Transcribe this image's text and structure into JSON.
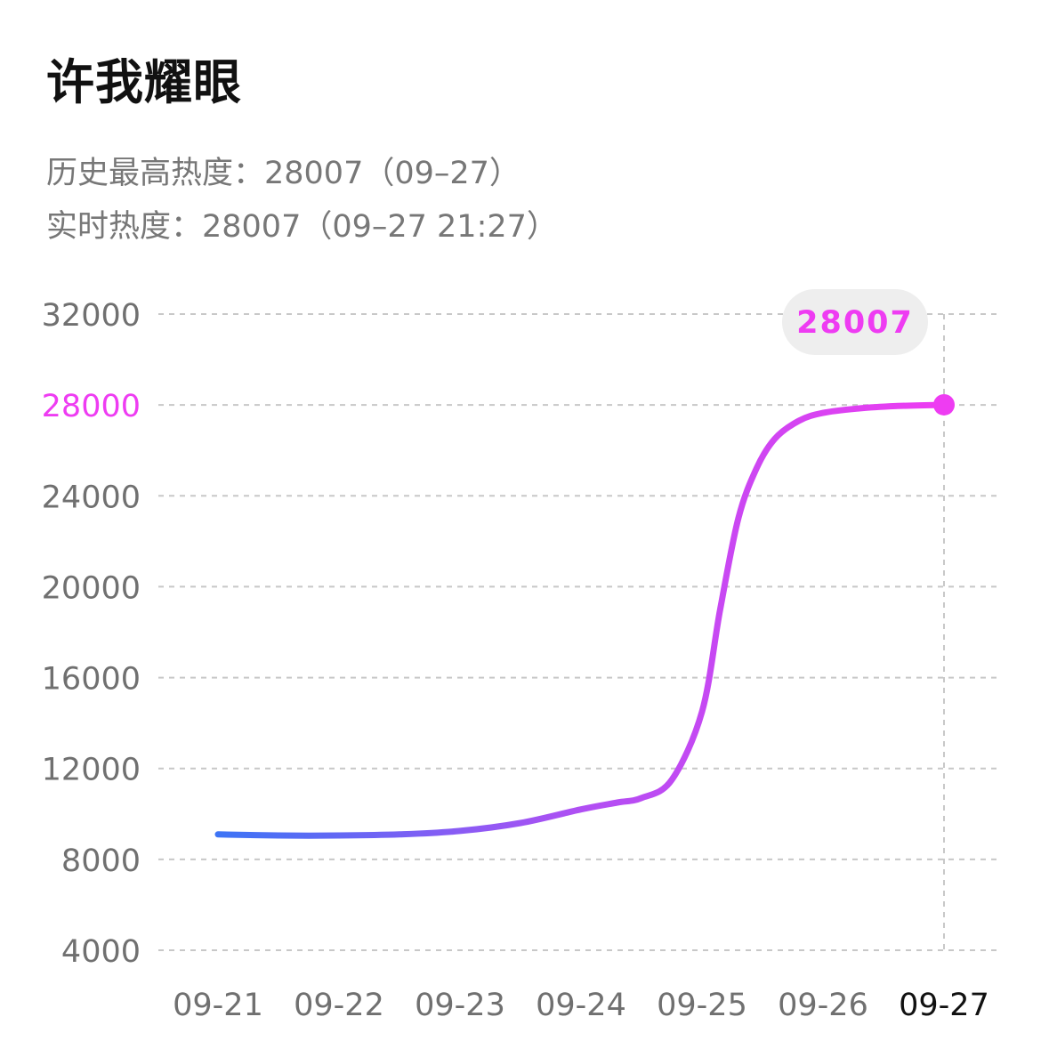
{
  "header": {
    "title": "许我耀眼",
    "history_high": "历史最高热度：28007（09–27）",
    "realtime": "实时热度：28007（09–27 21:27）"
  },
  "colors": {
    "line_start": "#3d74f5",
    "line_mid": "#b04ff3",
    "line_end": "#ee3cf2",
    "highlight": "#ee3cf2",
    "grid": "#c8c8c8",
    "axis_text": "#707070",
    "badge_bg": "#eeeeee"
  },
  "chart_data": {
    "type": "line",
    "title": "",
    "xlabel": "",
    "ylabel": "",
    "categories": [
      "09-21",
      "09-22",
      "09-23",
      "09-24",
      "09-25",
      "09-26",
      "09-27"
    ],
    "x": [
      0,
      0.5,
      1,
      1.5,
      2,
      2.5,
      3,
      3.3,
      3.5,
      3.75,
      4,
      4.15,
      4.3,
      4.45,
      4.6,
      4.8,
      5.0,
      5.3,
      5.6,
      6
    ],
    "y": [
      9100,
      9050,
      9050,
      9100,
      9250,
      9600,
      10200,
      10500,
      10700,
      11500,
      14500,
      19000,
      23000,
      25200,
      26500,
      27300,
      27650,
      27850,
      27950,
      28007
    ],
    "ylim": [
      4000,
      32000
    ],
    "yticks": [
      "32000",
      "28000",
      "24000",
      "20000",
      "16000",
      "12000",
      "8000",
      "4000"
    ],
    "highlight_ytick": "28000",
    "highlight_category": "09-27",
    "last_value_label": "28007",
    "grid": true
  }
}
